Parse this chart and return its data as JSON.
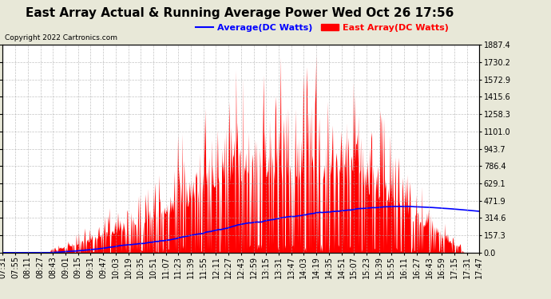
{
  "title": "East Array Actual & Running Average Power Wed Oct 26 17:56",
  "copyright": "Copyright 2022 Cartronics.com",
  "legend_avg": "Average(DC Watts)",
  "legend_east": "East Array(DC Watts)",
  "legend_avg_color": "#0000ff",
  "legend_east_color": "#ff0000",
  "ymin": 0.0,
  "ymax": 1887.4,
  "yticks": [
    0.0,
    157.3,
    314.6,
    471.9,
    629.1,
    786.4,
    943.7,
    1101.0,
    1258.3,
    1415.6,
    1572.9,
    1730.2,
    1887.4
  ],
  "xtick_labels": [
    "07:31",
    "07:55",
    "08:11",
    "08:27",
    "08:43",
    "09:01",
    "09:15",
    "09:31",
    "09:47",
    "10:03",
    "10:19",
    "10:35",
    "10:51",
    "11:07",
    "11:23",
    "11:39",
    "11:55",
    "12:11",
    "12:27",
    "12:43",
    "12:59",
    "13:15",
    "13:31",
    "13:47",
    "14:03",
    "14:19",
    "14:35",
    "14:51",
    "15:07",
    "15:23",
    "15:39",
    "15:55",
    "16:11",
    "16:27",
    "16:43",
    "16:59",
    "17:15",
    "17:31",
    "17:47"
  ],
  "bg_color": "#e8e8d8",
  "plot_bg_color": "#ffffff",
  "fill_color": "#ff0000",
  "line_color": "#0000ff",
  "grid_color": "#aaaaaa",
  "grid_style": "--",
  "title_fontsize": 11,
  "tick_fontsize": 7,
  "legend_fontsize": 8
}
